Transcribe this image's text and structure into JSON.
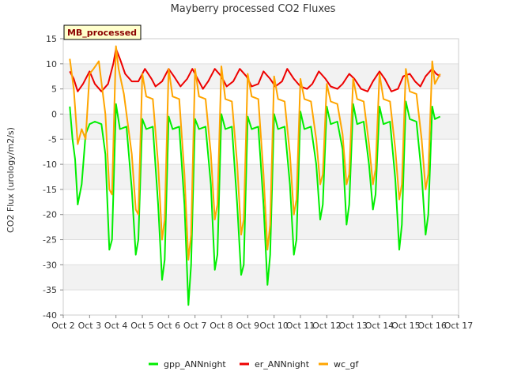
{
  "chart_data": {
    "type": "line",
    "title": "Mayberry processed CO2 Fluxes",
    "xlabel": "",
    "ylabel": "CO2 Flux (urology/m2/s)",
    "badge": "MB_processed",
    "xlim": [
      2,
      17
    ],
    "ylim": [
      -40,
      15
    ],
    "yticks": [
      15,
      10,
      5,
      0,
      -5,
      -10,
      -15,
      -20,
      -25,
      -30,
      -35,
      -40
    ],
    "xticks": [
      {
        "value": 2,
        "label": "Oct 2"
      },
      {
        "value": 3,
        "label": "Oct 3"
      },
      {
        "value": 4,
        "label": "Oct 4"
      },
      {
        "value": 5,
        "label": "Oct 5"
      },
      {
        "value": 6,
        "label": "Oct 6"
      },
      {
        "value": 7,
        "label": "Oct 7"
      },
      {
        "value": 8,
        "label": "Oct 8"
      },
      {
        "value": 9,
        "label": "Oct 9"
      },
      {
        "value": 10,
        "label": "Oct 10"
      },
      {
        "value": 11,
        "label": "Oct 11"
      },
      {
        "value": 12,
        "label": "Oct 12"
      },
      {
        "value": 13,
        "label": "Oct 13"
      },
      {
        "value": 14,
        "label": "Oct 14"
      },
      {
        "value": 15,
        "label": "Oct 15"
      },
      {
        "value": 16,
        "label": "Oct 16"
      },
      {
        "value": 17,
        "label": "Oct 17"
      }
    ],
    "bands": "alternating light gray horizontal bands",
    "series": [
      {
        "name": "gpp_ANNnight",
        "color": "#00ee00",
        "x": [
          2.25,
          2.35,
          2.45,
          2.55,
          2.7,
          2.85,
          3.0,
          3.2,
          3.45,
          3.6,
          3.75,
          3.85,
          4.0,
          4.15,
          4.4,
          4.6,
          4.75,
          4.85,
          5.0,
          5.15,
          5.4,
          5.6,
          5.75,
          5.85,
          6.0,
          6.15,
          6.4,
          6.6,
          6.75,
          6.85,
          7.0,
          7.15,
          7.4,
          7.6,
          7.75,
          7.85,
          8.0,
          8.15,
          8.4,
          8.6,
          8.75,
          8.85,
          9.0,
          9.15,
          9.4,
          9.6,
          9.75,
          9.85,
          10.0,
          10.15,
          10.4,
          10.6,
          10.75,
          10.85,
          11.0,
          11.15,
          11.4,
          11.6,
          11.75,
          11.85,
          12.0,
          12.15,
          12.4,
          12.6,
          12.75,
          12.85,
          13.0,
          13.15,
          13.4,
          13.6,
          13.75,
          13.85,
          14.0,
          14.15,
          14.4,
          14.6,
          14.75,
          14.85,
          15.0,
          15.15,
          15.4,
          15.6,
          15.75,
          15.85,
          16.0,
          16.1,
          16.3
        ],
        "y": [
          1.5,
          -5,
          -9,
          -18,
          -14,
          -4,
          -2,
          -1.5,
          -2,
          -8,
          -27,
          -25,
          2,
          -3,
          -2.5,
          -15,
          -28,
          -25,
          -1,
          -3,
          -2.5,
          -18,
          -33,
          -29,
          -0.5,
          -3,
          -2.5,
          -18,
          -38,
          -30,
          -1,
          -3,
          -2.5,
          -14,
          -31,
          -28,
          0,
          -3,
          -2.5,
          -18,
          -32,
          -30,
          -0.5,
          -3,
          -2.5,
          -18,
          -34,
          -28,
          0,
          -3,
          -2.5,
          -14,
          -28,
          -25,
          0.5,
          -3,
          -2.5,
          -10,
          -21,
          -18,
          1.5,
          -2,
          -1.5,
          -7,
          -22,
          -18,
          2,
          -2,
          -1.5,
          -10,
          -19,
          -16,
          1.5,
          -2,
          -1.5,
          -13,
          -27,
          -22,
          2.5,
          -1,
          -1.5,
          -12,
          -24,
          -20,
          1.5,
          -1,
          -0.5
        ]
      },
      {
        "name": "er_ANNnight",
        "color": "#ee0000",
        "x": [
          2.25,
          2.4,
          2.55,
          2.75,
          3.0,
          3.2,
          3.45,
          3.7,
          3.9,
          4.0,
          4.15,
          4.35,
          4.6,
          4.85,
          5.1,
          5.35,
          5.5,
          5.75,
          6.0,
          6.2,
          6.45,
          6.7,
          6.9,
          7.05,
          7.3,
          7.5,
          7.75,
          8.0,
          8.2,
          8.45,
          8.7,
          8.95,
          9.15,
          9.4,
          9.6,
          9.85,
          10.05,
          10.3,
          10.5,
          10.75,
          11.0,
          11.25,
          11.45,
          11.7,
          11.95,
          12.15,
          12.4,
          12.6,
          12.85,
          13.05,
          13.3,
          13.55,
          13.75,
          14.0,
          14.2,
          14.45,
          14.7,
          14.9,
          15.15,
          15.35,
          15.55,
          15.75,
          16.0,
          16.15,
          16.3
        ],
        "y": [
          8.5,
          7,
          4.5,
          6,
          8.5,
          6,
          4.5,
          6,
          10,
          13,
          11,
          8,
          6.5,
          6.5,
          9,
          7,
          5.5,
          6.5,
          9,
          7.5,
          5.5,
          7,
          9,
          7.5,
          5,
          6.5,
          9,
          7.5,
          5.5,
          6.5,
          9,
          7.5,
          5.5,
          6,
          8.5,
          7,
          5.5,
          6.5,
          9,
          7,
          5.5,
          5,
          6,
          8.5,
          7,
          5.5,
          5,
          6,
          8,
          7,
          5,
          4.5,
          6.5,
          8.5,
          7,
          4.5,
          5,
          7.5,
          8,
          6.5,
          5.5,
          7.5,
          9,
          8,
          7.5
        ]
      },
      {
        "name": "wc_gf",
        "color": "#ffa500",
        "x": [
          2.25,
          2.4,
          2.55,
          2.7,
          2.85,
          3.0,
          3.15,
          3.35,
          3.6,
          3.75,
          3.85,
          4.0,
          4.1,
          4.3,
          4.6,
          4.75,
          4.85,
          5.0,
          5.15,
          5.4,
          5.6,
          5.75,
          5.85,
          6.0,
          6.15,
          6.4,
          6.6,
          6.75,
          6.85,
          7.0,
          7.15,
          7.4,
          7.6,
          7.75,
          7.85,
          8.0,
          8.15,
          8.4,
          8.6,
          8.75,
          8.85,
          9.0,
          9.15,
          9.4,
          9.6,
          9.75,
          9.85,
          10.0,
          10.15,
          10.4,
          10.6,
          10.75,
          10.85,
          11.0,
          11.15,
          11.4,
          11.6,
          11.75,
          11.85,
          12.0,
          12.15,
          12.4,
          12.6,
          12.75,
          12.85,
          13.0,
          13.15,
          13.4,
          13.6,
          13.75,
          13.85,
          14.0,
          14.15,
          14.4,
          14.6,
          14.75,
          14.85,
          15.0,
          15.15,
          15.4,
          15.6,
          15.75,
          15.85,
          16.0,
          16.1,
          16.3
        ],
        "y": [
          11,
          5,
          -6,
          -3,
          -5,
          8,
          9,
          10.5,
          0,
          -15,
          -16,
          13.5,
          9,
          4,
          -8,
          -19,
          -20,
          8,
          3.5,
          3,
          -10,
          -25,
          -21,
          9,
          3.5,
          3,
          -12,
          -29,
          -24,
          9,
          3.5,
          3,
          -8,
          -21,
          -18,
          9.5,
          3,
          2.5,
          -10,
          -24,
          -21,
          8,
          3.5,
          3,
          -12,
          -27,
          -22,
          7.5,
          3,
          2.5,
          -8,
          -20,
          -17,
          7,
          3,
          2.5,
          -5,
          -14,
          -12,
          6,
          2.5,
          2,
          -4,
          -14,
          -12,
          7,
          3,
          2.5,
          -6,
          -14,
          -11,
          8,
          3,
          2.5,
          -7,
          -17,
          -14,
          9,
          4.5,
          4,
          -5,
          -15,
          -12,
          10.5,
          6,
          8
        ]
      }
    ]
  }
}
